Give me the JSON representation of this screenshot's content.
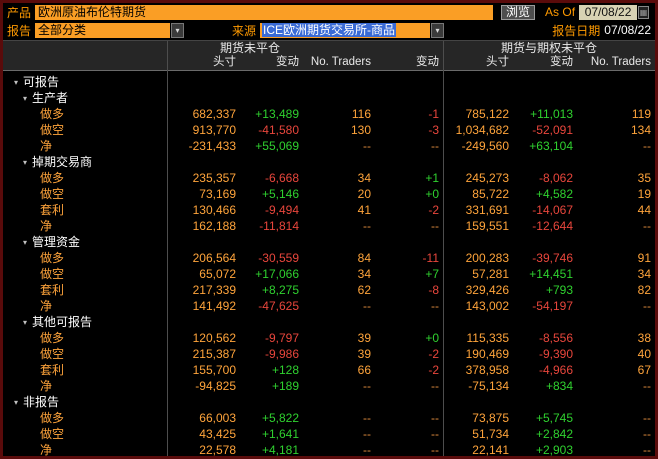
{
  "toolbar": {
    "product_label": "产品",
    "product_value": "欧洲原油布伦特期货",
    "browse_button": "浏览",
    "as_of_label": "As Of",
    "as_of_value": "07/08/22",
    "report_label": "报告",
    "report_value": "全部分类",
    "source_label": "来源",
    "source_value": "ICE欧洲期货交易所-商品",
    "report_date_label": "报告日期",
    "report_date_value": "07/08/22",
    "calendar_icon": "▦",
    "dropdown_icon": "▾"
  },
  "colors": {
    "amber": "#ffa43b",
    "label_orange": "#ff9a00",
    "positive_green": "#2fd12f",
    "negative_red": "#e8463c",
    "field_amber": "#fa9e25",
    "selection_blue": "#3a6bd6",
    "window_border": "#5a0b0b"
  },
  "table": {
    "section_headers": [
      "期货未平仓",
      "期货与期权未平仓"
    ],
    "columns": [
      "头寸",
      "变动",
      "No. Traders",
      "变动",
      "头寸",
      "变动",
      "No. Traders"
    ],
    "rows": [
      {
        "type": "group",
        "indent": 0,
        "label": "可报告",
        "cells": [
          "",
          "",
          "",
          "",
          "",
          "",
          ""
        ]
      },
      {
        "type": "group",
        "indent": 1,
        "label": "生产者",
        "cells": [
          "",
          "",
          "",
          "",
          "",
          "",
          ""
        ]
      },
      {
        "type": "data",
        "indent": 2,
        "label": "做多",
        "cells": [
          "682,337",
          "+13,489",
          "116",
          "-1",
          "785,122",
          "+11,013",
          "119"
        ]
      },
      {
        "type": "data",
        "indent": 2,
        "label": "做空",
        "cells": [
          "913,770",
          "-41,580",
          "130",
          "-3",
          "1,034,682",
          "-52,091",
          "134"
        ]
      },
      {
        "type": "data",
        "indent": 2,
        "label": "净",
        "cells": [
          "-231,433",
          "+55,069",
          "--",
          "--",
          "-249,560",
          "+63,104",
          "--"
        ]
      },
      {
        "type": "group",
        "indent": 1,
        "label": "掉期交易商",
        "cells": [
          "",
          "",
          "",
          "",
          "",
          "",
          ""
        ]
      },
      {
        "type": "data",
        "indent": 2,
        "label": "做多",
        "cells": [
          "235,357",
          "-6,668",
          "34",
          "+1",
          "245,273",
          "-8,062",
          "35"
        ]
      },
      {
        "type": "data",
        "indent": 2,
        "label": "做空",
        "cells": [
          "73,169",
          "+5,146",
          "20",
          "+0",
          "85,722",
          "+4,582",
          "19"
        ]
      },
      {
        "type": "data",
        "indent": 2,
        "label": "套利",
        "cells": [
          "130,466",
          "-9,494",
          "41",
          "-2",
          "331,691",
          "-14,067",
          "44"
        ]
      },
      {
        "type": "data",
        "indent": 2,
        "label": "净",
        "cells": [
          "162,188",
          "-11,814",
          "--",
          "--",
          "159,551",
          "-12,644",
          "--"
        ]
      },
      {
        "type": "group",
        "indent": 1,
        "label": "管理资金",
        "cells": [
          "",
          "",
          "",
          "",
          "",
          "",
          ""
        ]
      },
      {
        "type": "data",
        "indent": 2,
        "label": "做多",
        "cells": [
          "206,564",
          "-30,559",
          "84",
          "-11",
          "200,283",
          "-39,746",
          "91"
        ]
      },
      {
        "type": "data",
        "indent": 2,
        "label": "做空",
        "cells": [
          "65,072",
          "+17,066",
          "34",
          "+7",
          "57,281",
          "+14,451",
          "34"
        ]
      },
      {
        "type": "data",
        "indent": 2,
        "label": "套利",
        "cells": [
          "217,339",
          "+8,275",
          "62",
          "-8",
          "329,426",
          "+793",
          "82"
        ]
      },
      {
        "type": "data",
        "indent": 2,
        "label": "净",
        "cells": [
          "141,492",
          "-47,625",
          "--",
          "--",
          "143,002",
          "-54,197",
          "--"
        ]
      },
      {
        "type": "group",
        "indent": 1,
        "label": "其他可报告",
        "cells": [
          "",
          "",
          "",
          "",
          "",
          "",
          ""
        ]
      },
      {
        "type": "data",
        "indent": 2,
        "label": "做多",
        "cells": [
          "120,562",
          "-9,797",
          "39",
          "+0",
          "115,335",
          "-8,556",
          "38"
        ]
      },
      {
        "type": "data",
        "indent": 2,
        "label": "做空",
        "cells": [
          "215,387",
          "-9,986",
          "39",
          "-2",
          "190,469",
          "-9,390",
          "40"
        ]
      },
      {
        "type": "data",
        "indent": 2,
        "label": "套利",
        "cells": [
          "155,700",
          "+128",
          "66",
          "-2",
          "378,958",
          "-4,966",
          "67"
        ]
      },
      {
        "type": "data",
        "indent": 2,
        "label": "净",
        "cells": [
          "-94,825",
          "+189",
          "--",
          "--",
          "-75,134",
          "+834",
          "--"
        ]
      },
      {
        "type": "group",
        "indent": 0,
        "label": "非报告",
        "cells": [
          "",
          "",
          "",
          "",
          "",
          "",
          ""
        ]
      },
      {
        "type": "data",
        "indent": 2,
        "label": "做多",
        "cells": [
          "66,003",
          "+5,822",
          "--",
          "--",
          "73,875",
          "+5,745",
          "--"
        ]
      },
      {
        "type": "data",
        "indent": 2,
        "label": "做空",
        "cells": [
          "43,425",
          "+1,641",
          "--",
          "--",
          "51,734",
          "+2,842",
          "--"
        ]
      },
      {
        "type": "data",
        "indent": 2,
        "label": "净",
        "cells": [
          "22,578",
          "+4,181",
          "--",
          "--",
          "22,141",
          "+2,903",
          "--"
        ]
      }
    ]
  }
}
